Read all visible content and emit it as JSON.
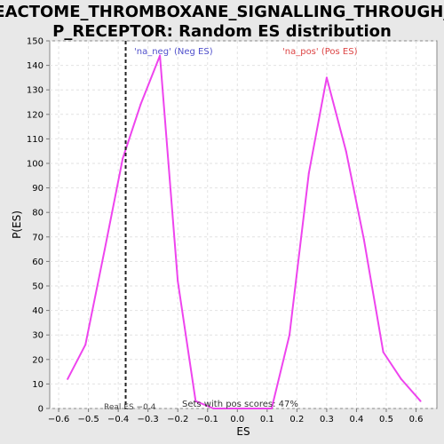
{
  "chart_data": {
    "type": "line",
    "title_lines": [
      "REACTOME_THROMBOXANE_SIGNALLING_THROUGH_T",
      "P_RECEPTOR: Random ES distribution"
    ],
    "xlabel": "ES",
    "ylabel": "P(ES)",
    "xlim": [
      -0.63,
      0.67
    ],
    "ylim": [
      0,
      150
    ],
    "xticks": [
      -0.6,
      -0.5,
      -0.4,
      -0.3,
      -0.2,
      -0.1,
      0.0,
      0.1,
      0.2,
      0.3,
      0.4,
      0.5,
      0.6
    ],
    "xtick_labels": [
      "−0.6",
      "−0.5",
      "−0.4",
      "−0.3",
      "−0.2",
      "−0.1",
      "0.0",
      "0.1",
      "0.2",
      "0.3",
      "0.4",
      "0.5",
      "0.6"
    ],
    "yticks": [
      0,
      10,
      20,
      30,
      40,
      50,
      60,
      70,
      80,
      90,
      100,
      110,
      120,
      130,
      140,
      150
    ],
    "grid": true,
    "series": [
      {
        "name": "random ES distribution",
        "color": "#ee44ee",
        "x": [
          -0.57,
          -0.51,
          -0.445,
          -0.385,
          -0.325,
          -0.26,
          -0.2,
          -0.14,
          -0.08,
          -0.02,
          0.05,
          0.115,
          0.175,
          0.24,
          0.3,
          0.365,
          0.425,
          0.49,
          0.55,
          0.615
        ],
        "y": [
          12,
          26,
          65,
          102,
          124,
          144,
          52,
          3,
          0,
          0,
          0,
          0,
          30,
          96,
          135,
          105,
          69,
          23,
          12,
          3
        ]
      }
    ],
    "real_es": {
      "value": -0.375,
      "label": "Real ES −0.4",
      "color": "#222222"
    },
    "annotations": {
      "neg_label": "'na_neg' (Neg ES)",
      "neg_color": "#5050cc",
      "pos_label": "'na_pos' (Pos ES)",
      "pos_color": "#dd4444",
      "sets_label": "Sets with pos scores: 47%"
    },
    "colors": {
      "background": "#e8e8e8",
      "plot_background": "#ffffff",
      "grid": "#e2e2e2",
      "axis": "#777777",
      "text": "#000000"
    }
  }
}
